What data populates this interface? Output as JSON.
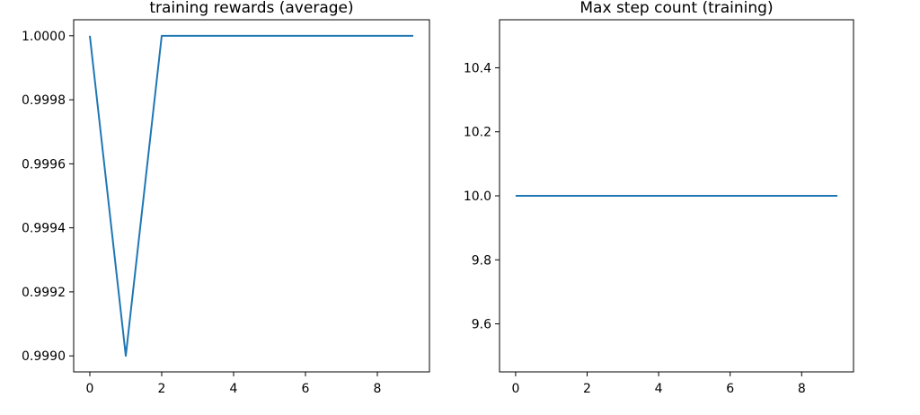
{
  "chart_data": [
    {
      "type": "line",
      "title": "training rewards (average)",
      "xlabel": "",
      "ylabel": "",
      "x": [
        0,
        1,
        2,
        3,
        4,
        5,
        6,
        7,
        8,
        9
      ],
      "series": [
        {
          "values": [
            1.0,
            0.999,
            1.0,
            1.0,
            1.0,
            1.0,
            1.0,
            1.0,
            1.0,
            1.0
          ],
          "color": "#1f77b4"
        }
      ],
      "xlim": [
        -0.45,
        9.45
      ],
      "ylim": [
        0.99895,
        1.00005
      ],
      "xticks": [
        0,
        2,
        4,
        6,
        8
      ],
      "xtick_labels": [
        "0",
        "2",
        "4",
        "6",
        "8"
      ],
      "yticks": [
        0.999,
        0.9992,
        0.9994,
        0.9996,
        0.9998,
        1.0
      ],
      "ytick_labels": [
        "0.9990",
        "0.9992",
        "0.9994",
        "0.9996",
        "0.9998",
        "1.0000"
      ],
      "grid": false,
      "legend": "none"
    },
    {
      "type": "line",
      "title": "Max step count (training)",
      "xlabel": "",
      "ylabel": "",
      "x": [
        0,
        1,
        2,
        3,
        4,
        5,
        6,
        7,
        8,
        9
      ],
      "series": [
        {
          "values": [
            10,
            10,
            10,
            10,
            10,
            10,
            10,
            10,
            10,
            10
          ],
          "color": "#1f77b4"
        }
      ],
      "xlim": [
        -0.45,
        9.45
      ],
      "ylim": [
        9.45,
        10.55
      ],
      "xticks": [
        0,
        2,
        4,
        6,
        8
      ],
      "xtick_labels": [
        "0",
        "2",
        "4",
        "6",
        "8"
      ],
      "yticks": [
        9.6,
        9.8,
        10.0,
        10.2,
        10.4
      ],
      "ytick_labels": [
        "9.6",
        "9.8",
        "10.0",
        "10.2",
        "10.4"
      ],
      "grid": false,
      "legend": "none"
    }
  ]
}
